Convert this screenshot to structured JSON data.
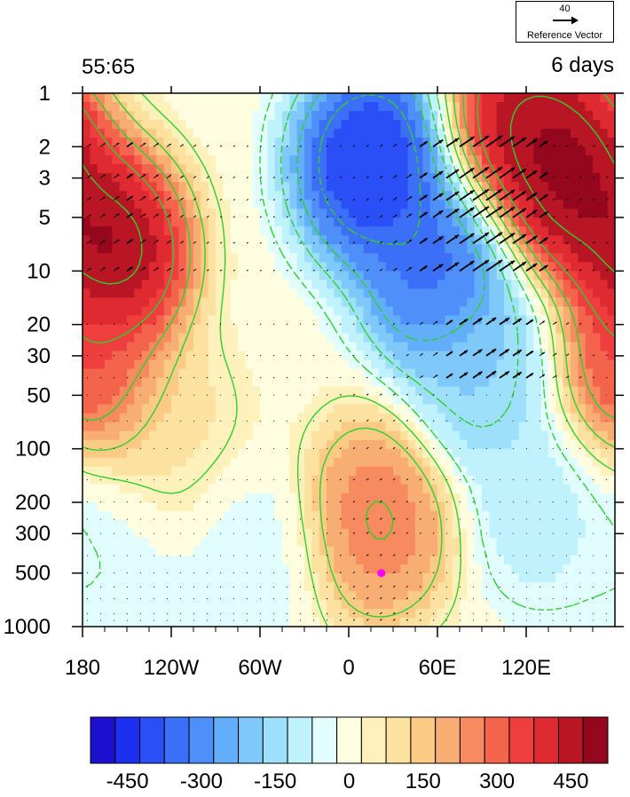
{
  "header": {
    "left_label": "55:65",
    "right_label": "6 days"
  },
  "reference_vector": {
    "magnitude": "40",
    "label": "Reference Vector"
  },
  "chart_data": {
    "type": "heatmap",
    "title": "",
    "xlabel": "",
    "ylabel": "",
    "x_ticks": [
      "180",
      "120W",
      "60W",
      "0",
      "60E",
      "120E"
    ],
    "x_tick_values": [
      -180,
      -120,
      -60,
      0,
      60,
      120
    ],
    "xlim": [
      -180,
      180
    ],
    "y_ticks": [
      "1",
      "2",
      "3",
      "5",
      "10",
      "20",
      "30",
      "50",
      "100",
      "200",
      "300",
      "500",
      "1000"
    ],
    "y_tick_values": [
      1,
      2,
      3,
      5,
      10,
      20,
      30,
      50,
      100,
      200,
      300,
      500,
      1000
    ],
    "ylim": [
      1,
      1000
    ],
    "y_scale": "log",
    "y_reversed": true,
    "colorbar": {
      "tick_labels": [
        "-450",
        "-300",
        "-150",
        "0",
        "150",
        "300",
        "450"
      ],
      "tick_values": [
        -450,
        -300,
        -150,
        0,
        150,
        300,
        450
      ],
      "level_min": -525,
      "level_step": 50,
      "colors": [
        "#1c0fcf",
        "#1e30ef",
        "#2a4ff6",
        "#3c6ff8",
        "#4f8ff9",
        "#63aefa",
        "#7fc9fa",
        "#9ee0fb",
        "#bff2fc",
        "#e2fdfd",
        "#fffddf",
        "#fff1bb",
        "#fde1a0",
        "#fbcb86",
        "#f8ae72",
        "#f78a5e",
        "#f4644d",
        "#ef3e3e",
        "#df2a31",
        "#b81625",
        "#94071c"
      ]
    },
    "field_features": [
      {
        "lon": -160,
        "p": 8,
        "value": 560
      },
      {
        "lon": -170,
        "p": 40,
        "value": 380
      },
      {
        "lon": -120,
        "p": 90,
        "value": 100
      },
      {
        "lon": 15,
        "p": 2.5,
        "value": -500
      },
      {
        "lon": 60,
        "p": 10,
        "value": -400
      },
      {
        "lon": 90,
        "p": 40,
        "value": -200
      },
      {
        "lon": 130,
        "p": 200,
        "value": -120
      },
      {
        "lon": 150,
        "p": 3,
        "value": 560
      },
      {
        "lon": 120,
        "p": 1.5,
        "value": 520
      },
      {
        "lon": 20,
        "p": 250,
        "value": 300
      },
      {
        "lon": -70,
        "p": 400,
        "value": -60
      },
      {
        "lon": -165,
        "p": 350,
        "value": -60
      }
    ],
    "marker": {
      "lon": 22,
      "p": 500,
      "color": "#ff00ff"
    },
    "contour_color": "#2fcf2f",
    "vector_color": "#000000"
  }
}
